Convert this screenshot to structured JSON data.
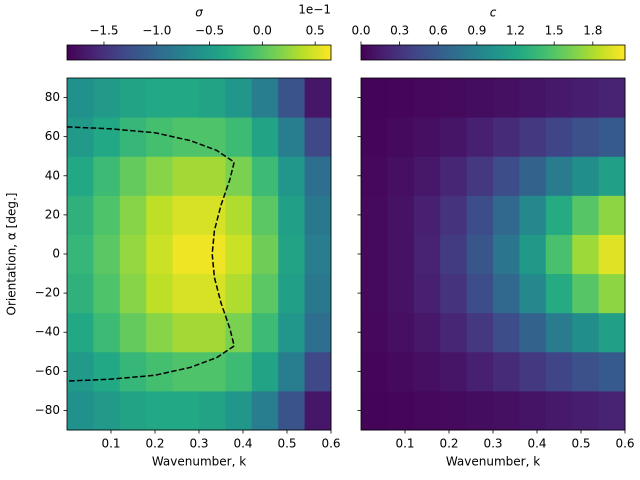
{
  "chart_data": [
    {
      "type": "heatmap",
      "colormap": "viridis",
      "colorbar_label": "σ",
      "colorbar_offset": "1e−1",
      "clim": [
        -1.85,
        0.65
      ],
      "cticks": [
        {
          "value": -1.5,
          "label": "−1.5"
        },
        {
          "value": -1.0,
          "label": "−1.0"
        },
        {
          "value": -0.5,
          "label": "−0.5"
        },
        {
          "value": 0.0,
          "label": "0.0"
        },
        {
          "value": 0.5,
          "label": "0.5"
        }
      ],
      "xlabel": "Wavenumber, k",
      "ylabel": "Orientation, α [deg.]",
      "xlim": [
        0,
        0.6
      ],
      "ylim": [
        -90,
        90
      ],
      "xticks": [
        0.1,
        0.2,
        0.3,
        0.4,
        0.5,
        0.6
      ],
      "yticks": [
        {
          "value": -80,
          "label": "−80"
        },
        {
          "value": -60,
          "label": "−60"
        },
        {
          "value": -40,
          "label": "−40"
        },
        {
          "value": -20,
          "label": "−20"
        },
        0,
        20,
        40,
        60,
        80
      ],
      "x": [
        0.03,
        0.09,
        0.15,
        0.21,
        0.27,
        0.33,
        0.39,
        0.45,
        0.51,
        0.57
      ],
      "y": [
        -80,
        -60,
        -40,
        -20,
        0,
        20,
        40,
        60,
        80
      ],
      "z": [
        [
          -0.6,
          -0.5,
          -0.4,
          -0.35,
          -0.35,
          -0.4,
          -0.55,
          -0.8,
          -1.2,
          -1.7
        ],
        [
          -0.5,
          -0.35,
          -0.2,
          -0.1,
          -0.05,
          -0.05,
          -0.15,
          -0.4,
          -0.8,
          -1.3
        ],
        [
          -0.35,
          -0.15,
          0.05,
          0.2,
          0.3,
          0.3,
          0.15,
          -0.15,
          -0.55,
          -0.95
        ],
        [
          -0.25,
          -0.05,
          0.2,
          0.4,
          0.5,
          0.5,
          0.35,
          0.0,
          -0.45,
          -0.85
        ],
        [
          -0.2,
          0.0,
          0.25,
          0.45,
          0.6,
          0.6,
          0.45,
          0.1,
          -0.4,
          -0.8
        ],
        [
          -0.25,
          -0.05,
          0.2,
          0.4,
          0.5,
          0.5,
          0.35,
          0.0,
          -0.45,
          -0.85
        ],
        [
          -0.35,
          -0.15,
          0.05,
          0.2,
          0.3,
          0.3,
          0.15,
          -0.15,
          -0.55,
          -0.95
        ],
        [
          -0.5,
          -0.35,
          -0.2,
          -0.1,
          -0.05,
          -0.05,
          -0.15,
          -0.4,
          -0.8,
          -1.3
        ],
        [
          -0.6,
          -0.5,
          -0.4,
          -0.35,
          -0.35,
          -0.4,
          -0.55,
          -0.8,
          -1.2,
          -1.7
        ]
      ],
      "contour": {
        "color": "#000000",
        "style": "dashed",
        "x": [
          0,
          0.1,
          0.2,
          0.28,
          0.34,
          0.38,
          0.37,
          0.35,
          0.335,
          0.33,
          0.335,
          0.35,
          0.37,
          0.38,
          0.34,
          0.28,
          0.2,
          0.1,
          0
        ],
        "y": [
          65,
          64,
          62,
          58,
          53,
          47,
          38,
          25,
          12,
          0,
          -12,
          -25,
          -38,
          -47,
          -53,
          -58,
          -62,
          -64,
          -65
        ]
      }
    },
    {
      "type": "heatmap",
      "colormap": "viridis",
      "colorbar_label": "c",
      "clim": [
        0,
        2.05
      ],
      "cticks": [
        {
          "value": 0.0,
          "label": "0.0"
        },
        0.3,
        0.6,
        0.9,
        1.2,
        1.5,
        1.8
      ],
      "xlabel": "Wavenumber, k",
      "xlim": [
        0,
        0.6
      ],
      "ylim": [
        -90,
        90
      ],
      "xticks": [
        0.1,
        0.2,
        0.3,
        0.4,
        0.5,
        0.6
      ],
      "yticks": [
        -80,
        -60,
        -40,
        -20,
        0,
        20,
        40,
        60,
        80
      ],
      "x": [
        0.03,
        0.09,
        0.15,
        0.21,
        0.27,
        0.33,
        0.39,
        0.45,
        0.51,
        0.57
      ],
      "y": [
        -80,
        -60,
        -40,
        -20,
        0,
        20,
        40,
        60,
        80
      ],
      "z": [
        [
          0.02,
          0.03,
          0.04,
          0.05,
          0.07,
          0.09,
          0.11,
          0.14,
          0.17,
          0.2
        ],
        [
          0.03,
          0.05,
          0.08,
          0.12,
          0.18,
          0.25,
          0.33,
          0.42,
          0.5,
          0.58
        ],
        [
          0.04,
          0.08,
          0.13,
          0.22,
          0.33,
          0.48,
          0.65,
          0.85,
          1.0,
          1.15
        ],
        [
          0.05,
          0.1,
          0.18,
          0.3,
          0.48,
          0.7,
          0.95,
          1.25,
          1.5,
          1.7
        ],
        [
          0.05,
          0.1,
          0.2,
          0.35,
          0.55,
          0.8,
          1.1,
          1.45,
          1.75,
          1.95
        ],
        [
          0.05,
          0.1,
          0.18,
          0.3,
          0.48,
          0.7,
          0.95,
          1.25,
          1.5,
          1.7
        ],
        [
          0.04,
          0.08,
          0.13,
          0.22,
          0.33,
          0.48,
          0.65,
          0.85,
          1.0,
          1.15
        ],
        [
          0.03,
          0.05,
          0.08,
          0.12,
          0.18,
          0.25,
          0.33,
          0.42,
          0.5,
          0.58
        ],
        [
          0.02,
          0.03,
          0.04,
          0.05,
          0.07,
          0.09,
          0.11,
          0.14,
          0.17,
          0.2
        ]
      ]
    }
  ]
}
